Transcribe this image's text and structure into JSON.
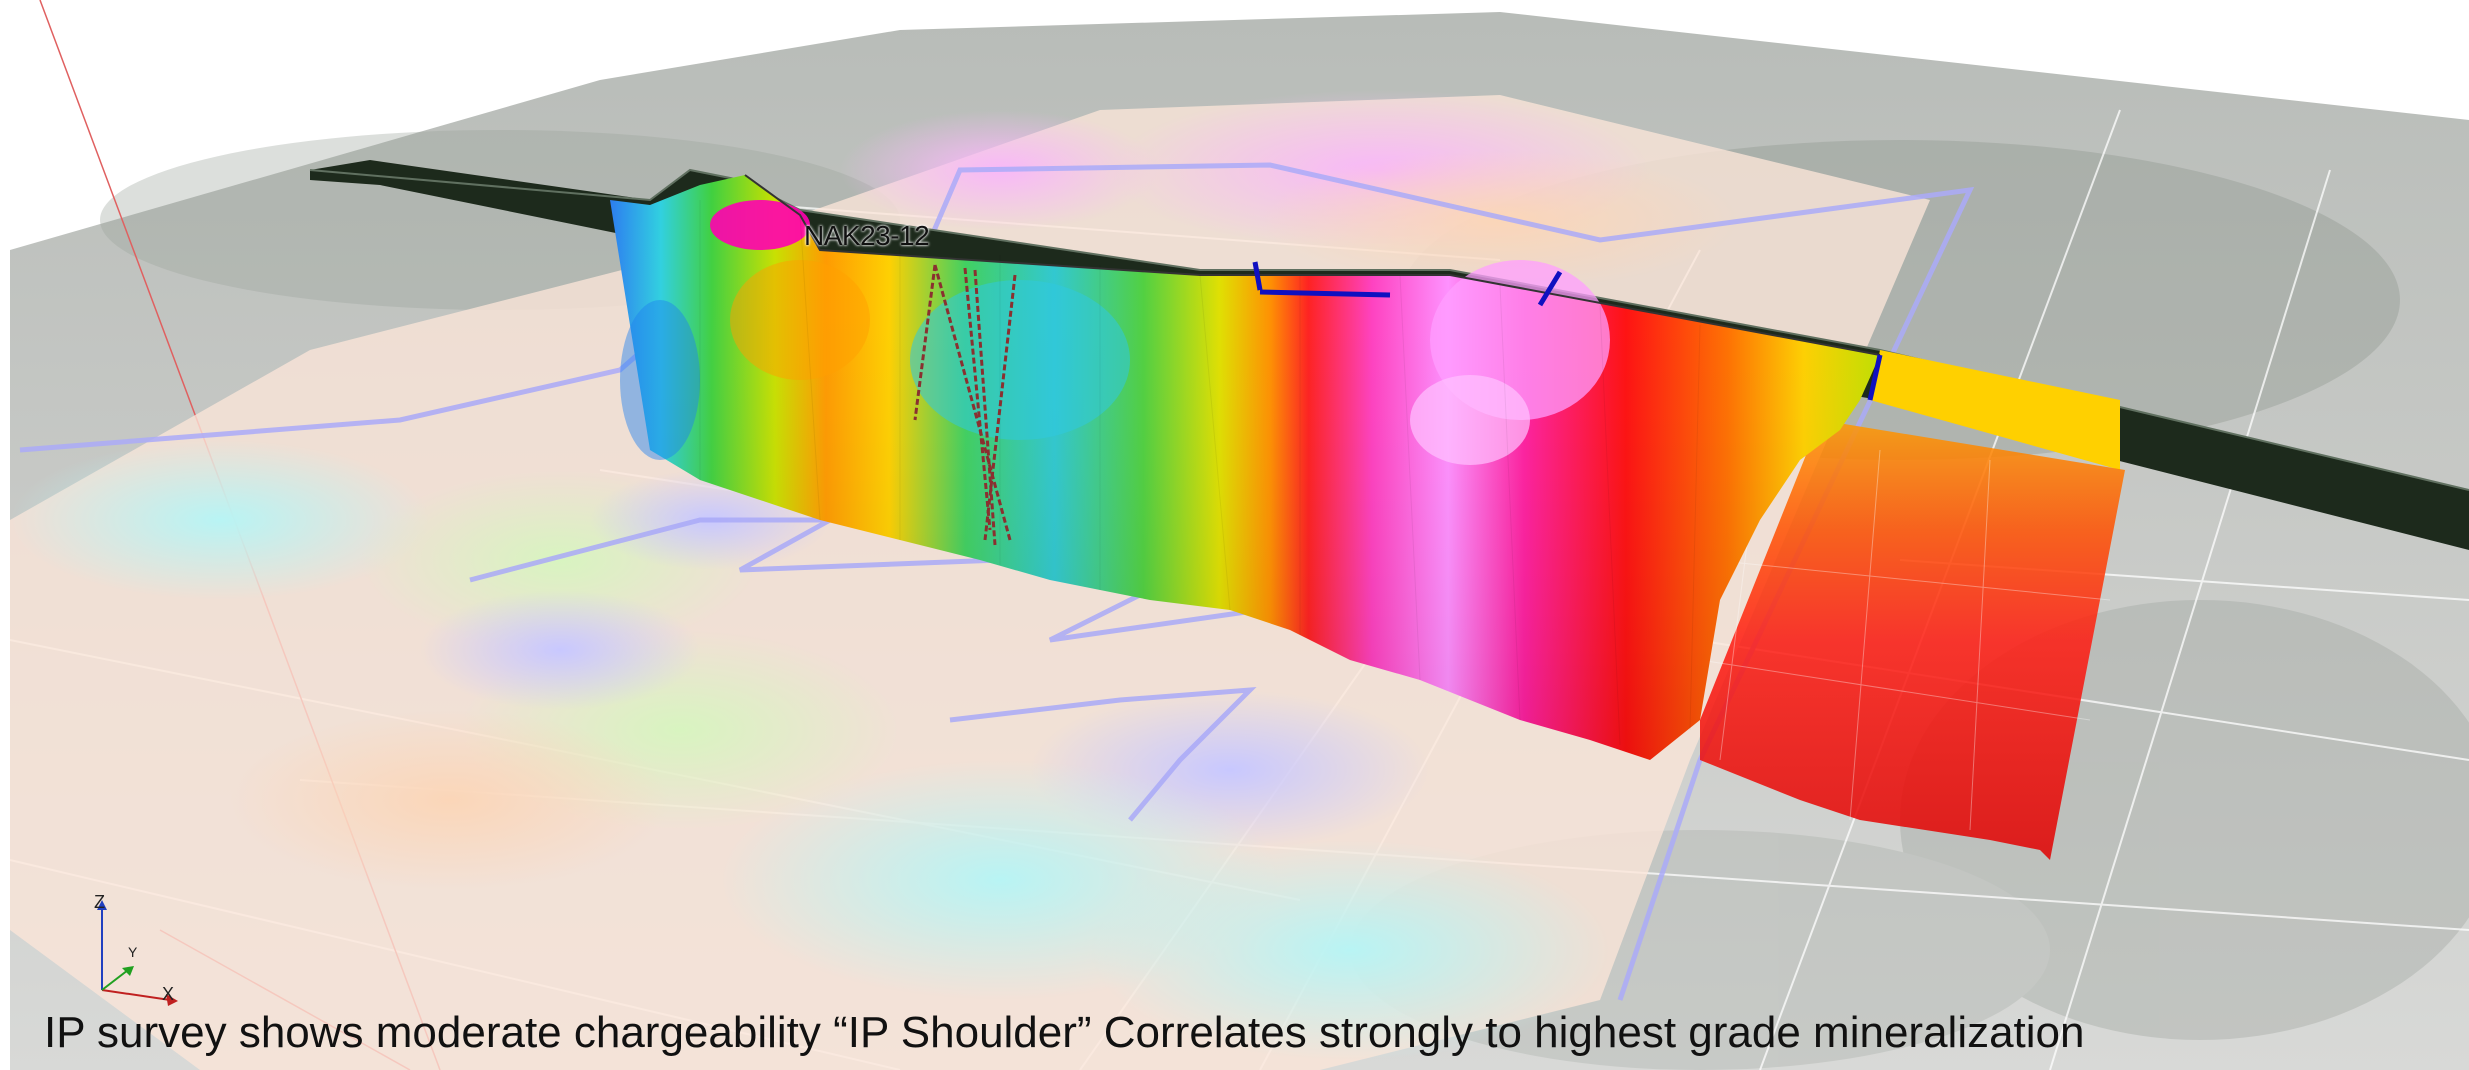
{
  "well": {
    "name": "NAK23-12"
  },
  "caption": {
    "text": "IP survey shows moderate chargeability “IP Shoulder”  Correlates strongly to highest grade mineralization"
  },
  "axes": {
    "z_label": "Z",
    "x_label": "X",
    "y_label": "Y"
  },
  "colors": {
    "chargeability_scale": [
      "#2060ff",
      "#00c8ff",
      "#30d040",
      "#b0e000",
      "#ffd000",
      "#ff8000",
      "#ff1010",
      "#ff20a0",
      "#ff80ff"
    ],
    "claim_outline": "#a8a8ff",
    "terrain": "#c9cbc8"
  }
}
